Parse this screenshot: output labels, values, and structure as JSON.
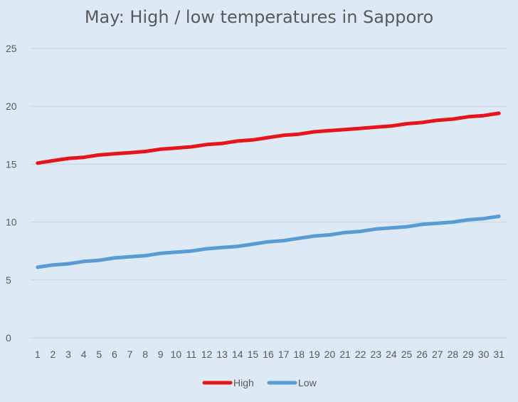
{
  "chart_data": {
    "type": "line",
    "title": "May: High / low temperatures in Sapporo",
    "xlabel": "",
    "ylabel": "",
    "x": [
      1,
      2,
      3,
      4,
      5,
      6,
      7,
      8,
      9,
      10,
      11,
      12,
      13,
      14,
      15,
      16,
      17,
      18,
      19,
      20,
      21,
      22,
      23,
      24,
      25,
      26,
      27,
      28,
      29,
      30,
      31
    ],
    "ylim": [
      0,
      25
    ],
    "yticks": [
      0,
      5,
      10,
      15,
      20,
      25
    ],
    "grid": true,
    "legend": "bottom",
    "series": [
      {
        "name": "High",
        "color": "#e8141b",
        "values": [
          15.1,
          15.3,
          15.5,
          15.6,
          15.8,
          15.9,
          16.0,
          16.1,
          16.3,
          16.4,
          16.5,
          16.7,
          16.8,
          17.0,
          17.1,
          17.3,
          17.5,
          17.6,
          17.8,
          17.9,
          18.0,
          18.1,
          18.2,
          18.3,
          18.5,
          18.6,
          18.8,
          18.9,
          19.1,
          19.2,
          19.4
        ]
      },
      {
        "name": "Low",
        "color": "#5b9bd5",
        "values": [
          6.1,
          6.3,
          6.4,
          6.6,
          6.7,
          6.9,
          7.0,
          7.1,
          7.3,
          7.4,
          7.5,
          7.7,
          7.8,
          7.9,
          8.1,
          8.3,
          8.4,
          8.6,
          8.8,
          8.9,
          9.1,
          9.2,
          9.4,
          9.5,
          9.6,
          9.8,
          9.9,
          10.0,
          10.2,
          10.3,
          10.5
        ]
      }
    ]
  }
}
